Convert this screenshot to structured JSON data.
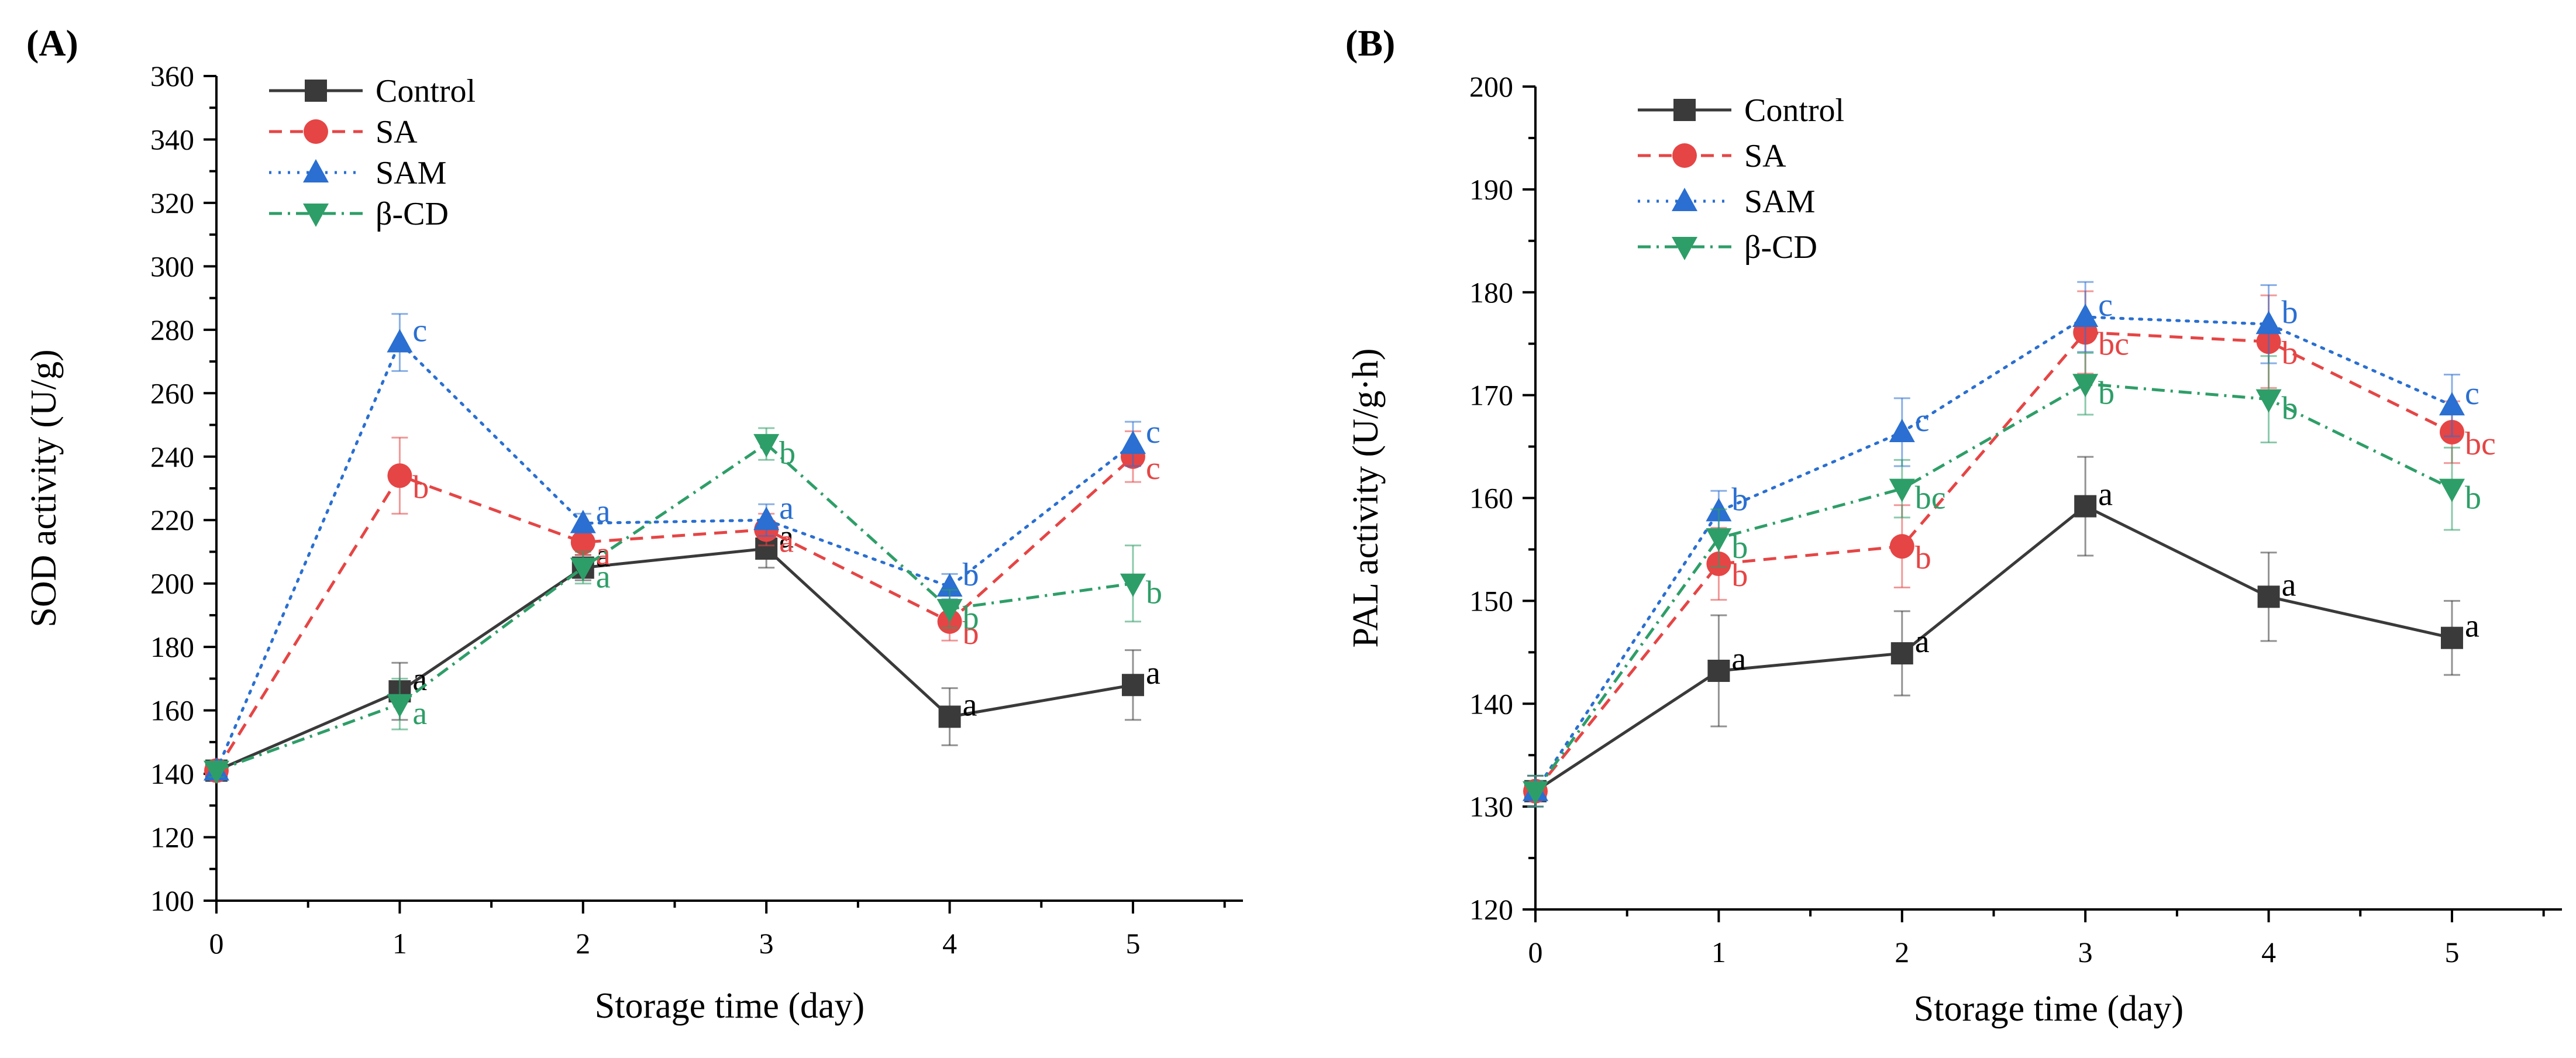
{
  "chart_data": [
    {
      "type": "line",
      "panel_label": "(A)",
      "xlabel": "Storage time (day)",
      "ylabel": "SOD activity (U/g)",
      "xlim": [
        0,
        5.6
      ],
      "ylim": [
        100,
        360
      ],
      "x_ticks": [
        0,
        1,
        2,
        3,
        4,
        5
      ],
      "x_tick_labels": [
        "0",
        "1",
        "2",
        "3",
        "4",
        "5"
      ],
      "y_ticks": [
        100,
        120,
        140,
        160,
        180,
        200,
        220,
        240,
        260,
        280,
        300,
        320,
        340,
        360
      ],
      "y_tick_labels": [
        "100",
        "120",
        "140",
        "160",
        "180",
        "200",
        "220",
        "240",
        "260",
        "280",
        "300",
        "320",
        "340",
        "360"
      ],
      "legend_position": "top-left",
      "x": [
        0,
        1,
        2,
        3,
        4,
        5
      ],
      "series": [
        {
          "name": "Control",
          "color": "#3a3a3a",
          "dash": "solid",
          "marker": "square",
          "values": [
            141,
            166,
            205,
            211,
            158,
            168
          ],
          "errors": [
            2,
            9,
            4,
            6,
            9,
            11
          ],
          "letters": [
            "",
            "a",
            "a",
            "a",
            "a",
            "a"
          ]
        },
        {
          "name": "SA",
          "color": "#e64545",
          "dash": "dashed",
          "marker": "circle",
          "values": [
            141,
            234,
            213,
            217,
            188,
            240
          ],
          "errors": [
            2,
            12,
            4,
            5,
            6,
            8
          ],
          "letters": [
            "",
            "b",
            "a",
            "a",
            "b",
            "c"
          ]
        },
        {
          "name": "SAM",
          "color": "#2a6fd1",
          "dash": "dotted",
          "marker": "triangle-up",
          "values": [
            141,
            276,
            219,
            220,
            199,
            244
          ],
          "errors": [
            2,
            9,
            3,
            5,
            4,
            7
          ],
          "letters": [
            "",
            "c",
            "a",
            "a",
            "b",
            "c"
          ]
        },
        {
          "name": "β-CD",
          "color": "#2e9e68",
          "dash": "dashdot",
          "marker": "triangle-down",
          "values": [
            141,
            162,
            205,
            244,
            192,
            200
          ],
          "errors": [
            2,
            8,
            5,
            5,
            6,
            12
          ],
          "letters": [
            "",
            "a",
            "a",
            "b",
            "b",
            "b"
          ]
        }
      ]
    },
    {
      "type": "line",
      "panel_label": "(B)",
      "xlabel": "Storage time (day)",
      "ylabel": "PAL activity (U/g·h)",
      "xlim": [
        0,
        5.6
      ],
      "ylim": [
        120,
        200
      ],
      "x_ticks": [
        0,
        1,
        2,
        3,
        4,
        5
      ],
      "x_tick_labels": [
        "0",
        "1",
        "2",
        "3",
        "4",
        "5"
      ],
      "y_ticks": [
        120,
        130,
        140,
        150,
        160,
        170,
        180,
        190,
        200
      ],
      "y_tick_labels": [
        "120",
        "130",
        "140",
        "150",
        "160",
        "170",
        "180",
        "190",
        "200"
      ],
      "legend_position": "top-left",
      "x": [
        0,
        1,
        2,
        3,
        4,
        5
      ],
      "series": [
        {
          "name": "Control",
          "color": "#3a3a3a",
          "dash": "solid",
          "marker": "square",
          "values": [
            131.5,
            143.2,
            144.9,
            159.2,
            150.4,
            146.4
          ],
          "errors": [
            1.5,
            5.4,
            4.1,
            4.8,
            4.3,
            3.6
          ],
          "letters": [
            "",
            "a",
            "a",
            "a",
            "a",
            "a"
          ]
        },
        {
          "name": "SA",
          "color": "#e64545",
          "dash": "dashed",
          "marker": "circle",
          "values": [
            131.5,
            153.6,
            155.3,
            176.1,
            175.2,
            166.4
          ],
          "errors": [
            1.5,
            3.5,
            4.0,
            4.0,
            4.5,
            3.0
          ],
          "letters": [
            "",
            "b",
            "b",
            "bc",
            "b",
            "bc"
          ]
        },
        {
          "name": "SAM",
          "color": "#2a6fd1",
          "dash": "dotted",
          "marker": "triangle-up",
          "values": [
            131.5,
            158.7,
            166.4,
            177.6,
            176.9,
            169.0
          ],
          "errors": [
            1.5,
            2.0,
            3.3,
            3.4,
            3.8,
            3.0
          ],
          "letters": [
            "",
            "b",
            "c",
            "c",
            "b",
            "c"
          ]
        },
        {
          "name": "β-CD",
          "color": "#2e9e68",
          "dash": "dashdot",
          "marker": "triangle-down",
          "values": [
            131.5,
            156.1,
            160.9,
            171.1,
            169.6,
            160.9
          ],
          "errors": [
            1.5,
            2.8,
            2.8,
            3.0,
            4.2,
            4.0
          ],
          "letters": [
            "",
            "b",
            "bc",
            "b",
            "b",
            "b"
          ]
        }
      ]
    }
  ]
}
